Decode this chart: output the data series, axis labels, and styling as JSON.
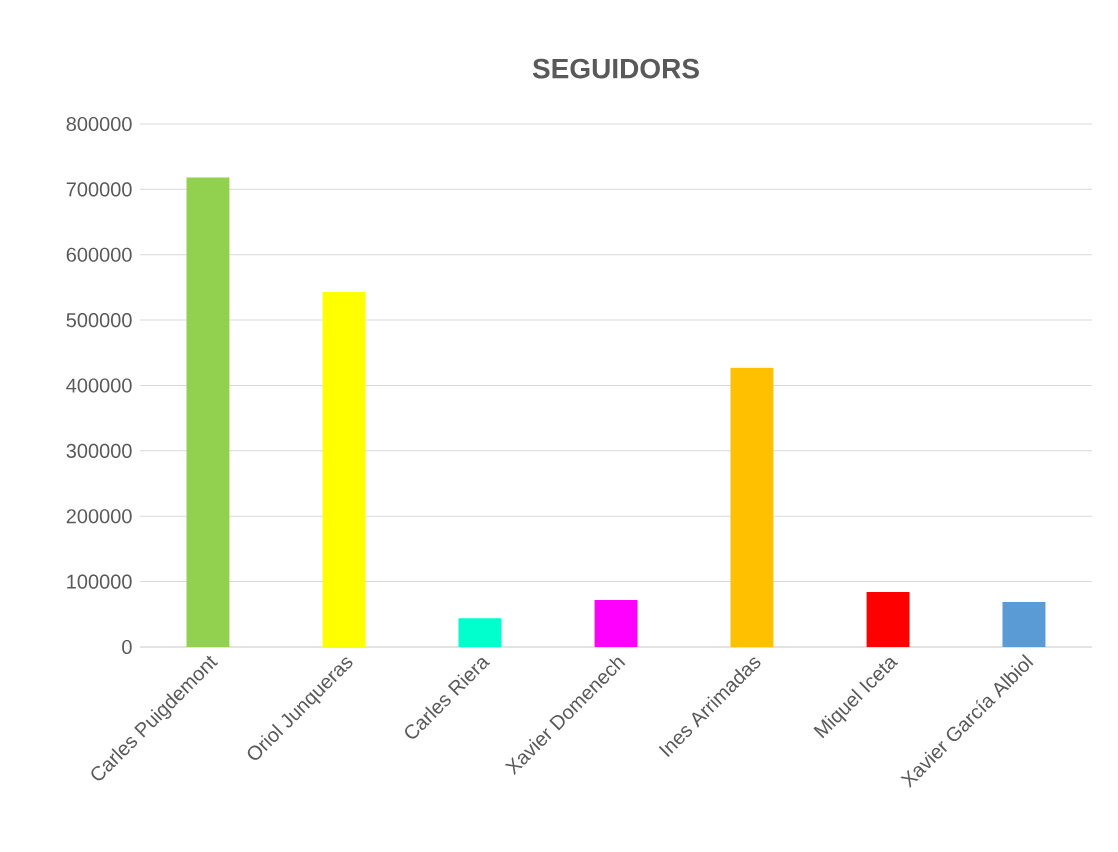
{
  "chart_data": {
    "type": "bar",
    "title": "SEGUIDORS",
    "categories": [
      "Carles Puigdemont",
      "Oriol Junqueras",
      "Carles Riera",
      "Xavier Domenech",
      "Ines Arrimadas",
      "Miquel Iceta",
      "Xavier García Albiol"
    ],
    "values": [
      718000,
      543000,
      44000,
      72000,
      427000,
      84000,
      69000
    ],
    "colors": [
      "#92d050",
      "#ffff00",
      "#00ffcc",
      "#ff00ff",
      "#ffc000",
      "#ff0000",
      "#5b9bd5"
    ],
    "ylim": [
      0,
      800000
    ],
    "yticks": [
      0,
      100000,
      200000,
      300000,
      400000,
      500000,
      600000,
      700000,
      800000
    ],
    "grid": "y"
  }
}
